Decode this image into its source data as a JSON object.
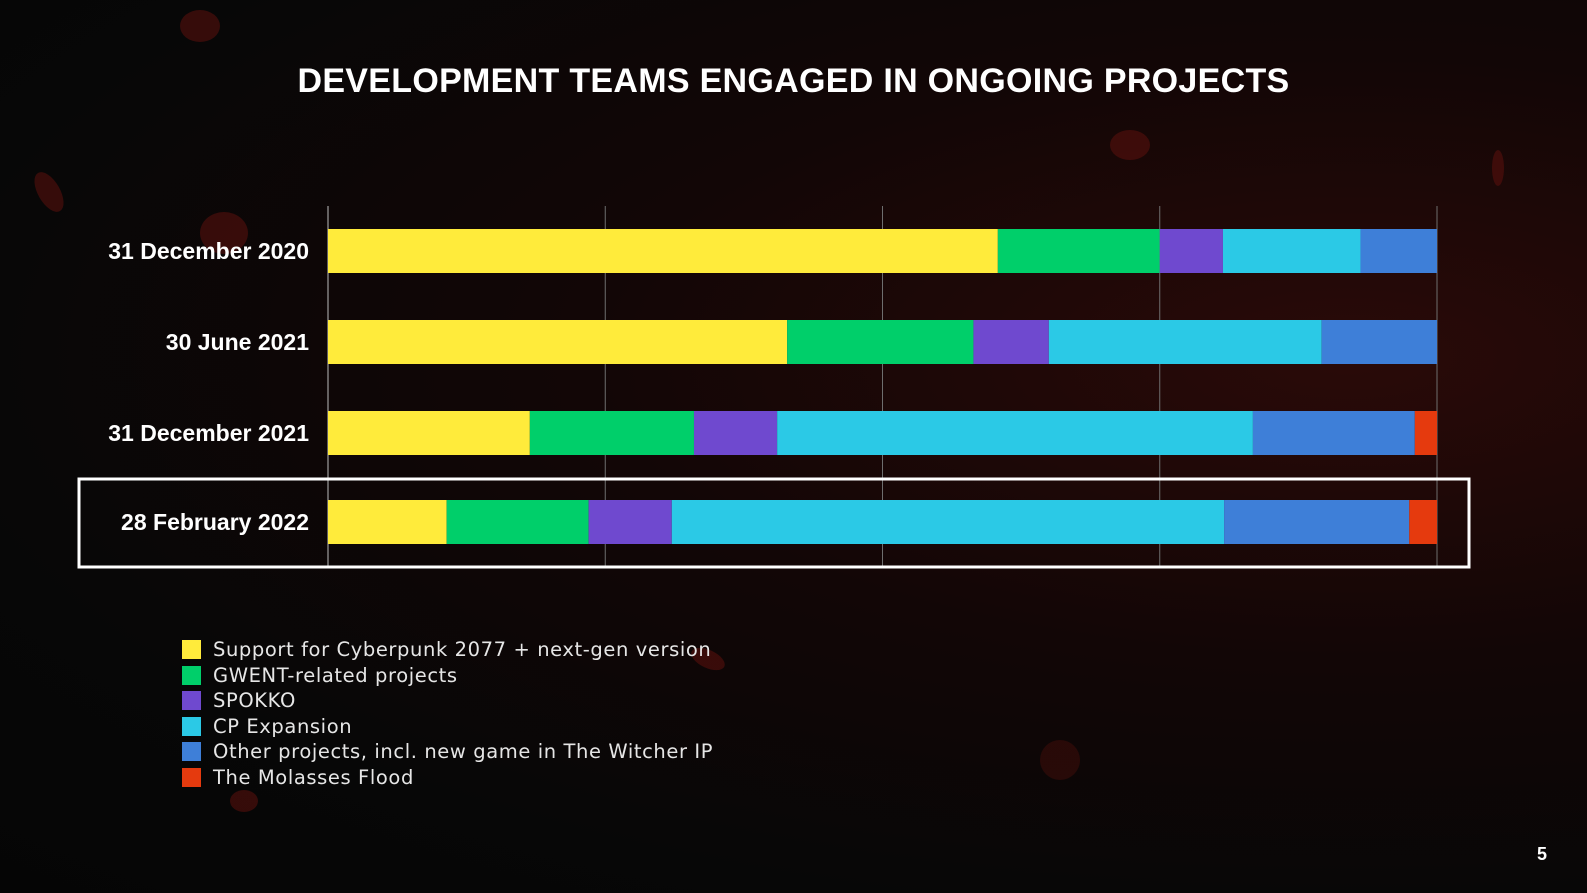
{
  "title": "DEVELOPMENT TEAMS ENGAGED IN ONGOING PROJECTS",
  "page_number": "5",
  "chart_data": {
    "type": "bar",
    "orientation": "horizontal",
    "stacked": true,
    "normalized_percent": true,
    "xlim": [
      0,
      100
    ],
    "grid": true,
    "legend_position": "bottom-left",
    "highlighted_category": "28 February 2022",
    "categories": [
      "31 December 2020",
      "30 June 2021",
      "31 December 2021",
      "28 February 2022"
    ],
    "series": [
      {
        "name": "Support for Cyberpunk 2077 + next-gen version",
        "color": "#FFEB3B",
        "values": [
          60.4,
          41.4,
          18.2,
          10.7
        ]
      },
      {
        "name": "GWENT-related projects",
        "color": "#00CF6A",
        "values": [
          14.6,
          16.8,
          14.8,
          12.8
        ]
      },
      {
        "name": "SPOKKO",
        "color": "#6F49CF",
        "values": [
          5.7,
          6.8,
          7.5,
          7.5
        ]
      },
      {
        "name": "CP Expansion",
        "color": "#2BC9E6",
        "values": [
          12.4,
          24.6,
          42.9,
          49.8
        ]
      },
      {
        "name": "Other projects, incl. new game in The Witcher IP",
        "color": "#3E7FD8",
        "values": [
          6.9,
          10.4,
          14.6,
          16.7
        ]
      },
      {
        "name": "The Molasses Flood",
        "color": "#E53A0E",
        "values": [
          0,
          0,
          2.0,
          2.5
        ]
      }
    ]
  }
}
